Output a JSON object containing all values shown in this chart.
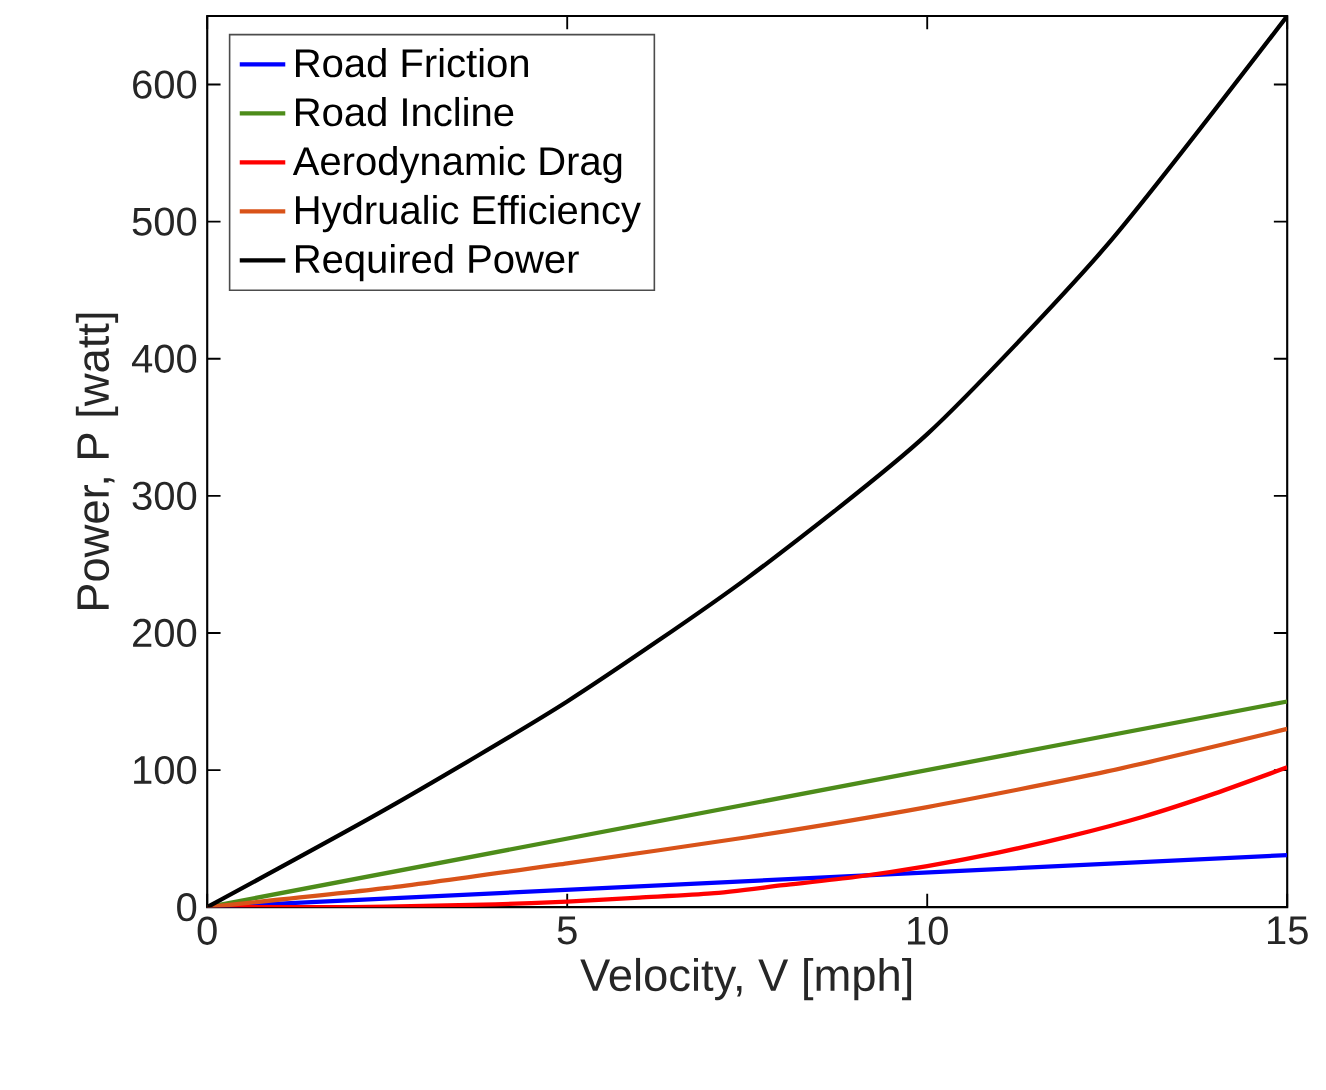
{
  "chart_data": {
    "type": "line",
    "xlabel": "Velocity, V [mph]",
    "ylabel": "Power, P [watt]",
    "xlim": [
      0,
      15
    ],
    "ylim": [
      0,
      650
    ],
    "xticks": [
      0,
      5,
      10,
      15
    ],
    "yticks": [
      0,
      100,
      200,
      300,
      400,
      500,
      600
    ],
    "legend": "top left",
    "grid": false,
    "x": [
      0,
      2.5,
      5,
      7.5,
      10,
      12.5,
      15
    ],
    "series": [
      {
        "name": "Road Friction",
        "color": "#0000ff",
        "x": [
          0,
          15
        ],
        "values": [
          0,
          38
        ]
      },
      {
        "name": "Road Incline",
        "color": "#4d8c1a",
        "x": [
          0,
          15
        ],
        "values": [
          0,
          150
        ]
      },
      {
        "name": "Aerodynamic Drag",
        "color": "#ff0000",
        "x": [
          0,
          1,
          2,
          3,
          4,
          5,
          6,
          7,
          8,
          9,
          10,
          11,
          12,
          13,
          14,
          15
        ],
        "values": [
          0,
          0,
          0,
          1,
          2,
          4,
          7,
          10,
          16,
          22,
          30,
          40,
          52,
          66,
          83,
          102
        ]
      },
      {
        "name": "Hydrualic Efficiency",
        "color": "#d95319",
        "values": [
          0,
          14,
          32,
          51,
          73,
          99,
          130
        ]
      },
      {
        "name": "Required Power",
        "color": "#000000",
        "values": [
          0,
          72,
          150,
          240,
          345,
          483,
          650
        ]
      }
    ]
  }
}
